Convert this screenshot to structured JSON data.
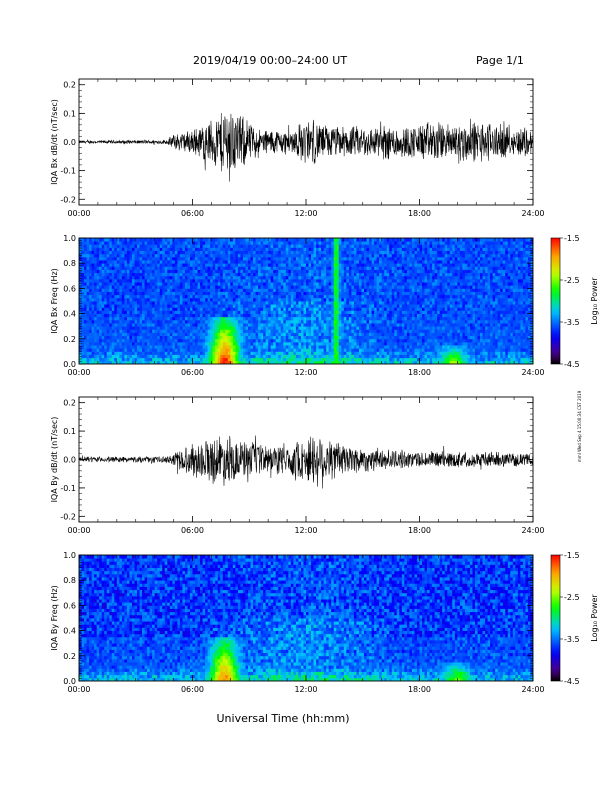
{
  "header": {
    "date_range": "2019/04/19   00:00–24:00 UT",
    "page": "Page 1/1"
  },
  "side_note": "mml Wed Sep 4 15:00:34 CST 2019",
  "xlabel": "Universal Time (hh:mm)",
  "colormap": "rainbow",
  "chart_data": [
    {
      "type": "line",
      "ylabel": "IQA Bx dB/dt (nT/sec)",
      "xlim": [
        0,
        24
      ],
      "ylim": [
        -0.22,
        0.22
      ],
      "x_ticks": [
        "00:00",
        "06:00",
        "12:00",
        "18:00",
        "24:00"
      ],
      "y_ticks": [
        -0.2,
        -0.1,
        0.0,
        0.1,
        0.2
      ],
      "y_tick_labels": [
        "-0.2",
        "-0.1",
        "0.0",
        "0.1",
        "0.2"
      ],
      "envelope": {
        "hours": [
          0,
          4.7,
          4.9,
          5.6,
          6.2,
          6.8,
          7.2,
          7.6,
          7.9,
          8.3,
          8.8,
          9.5,
          10.5,
          11.2,
          11.8,
          12.3,
          12.8,
          13.5,
          14.5,
          15.5,
          16.5,
          17.5,
          18.5,
          19.5,
          20.5,
          21.5,
          22.5,
          23.2,
          23.6,
          24
        ],
        "amplitude": [
          0.006,
          0.008,
          0.03,
          0.04,
          0.055,
          0.08,
          0.1,
          0.13,
          0.16,
          0.12,
          0.09,
          0.05,
          0.05,
          0.045,
          0.08,
          0.09,
          0.07,
          0.06,
          0.06,
          0.06,
          0.07,
          0.06,
          0.08,
          0.07,
          0.08,
          0.08,
          0.06,
          0.05,
          0.07,
          0.035
        ]
      },
      "peak_max": 0.17,
      "peak_min": -0.15
    },
    {
      "type": "heatmap",
      "ylabel": "IQA Bx Freq (Hz)",
      "colorbar_label": "Log₁₀ Power",
      "xlim": [
        0,
        24
      ],
      "ylim": [
        0,
        1.0
      ],
      "clim": [
        -4.5,
        -1.5
      ],
      "x_ticks": [
        "00:00",
        "06:00",
        "12:00",
        "18:00",
        "24:00"
      ],
      "y_tick_labels": [
        "0.0",
        "0.2",
        "0.4",
        "0.6",
        "0.8",
        "1.0"
      ],
      "colorbar_ticks": [
        "-1.5",
        "-2.5",
        "-3.5",
        "-4.5"
      ],
      "bursts": [
        {
          "hour": 7.7,
          "freq_top": 0.38,
          "peak": -1.5
        },
        {
          "hour": 13.6,
          "freq_top": 1.0,
          "peak": -2.6
        },
        {
          "hour": 19.8,
          "freq_top": 0.15,
          "peak": -2.4
        }
      ]
    },
    {
      "type": "line",
      "ylabel": "IQA By dB/dt (nT/sec)",
      "xlim": [
        0,
        24
      ],
      "ylim": [
        -0.22,
        0.22
      ],
      "x_ticks": [
        "00:00",
        "06:00",
        "12:00",
        "18:00",
        "24:00"
      ],
      "y_ticks": [
        -0.2,
        -0.1,
        0.0,
        0.1,
        0.2
      ],
      "y_tick_labels": [
        "-0.2",
        "-0.1",
        "0.0",
        "0.1",
        "0.2"
      ],
      "envelope": {
        "hours": [
          0,
          4.7,
          4.9,
          5.6,
          6.3,
          7.0,
          7.6,
          8.2,
          9.0,
          10.0,
          10.8,
          11.5,
          12.3,
          12.8,
          13.4,
          14.0,
          15.0,
          16.0,
          17.0,
          18.0,
          19.0,
          20.0,
          21.0,
          22.0,
          23.0,
          24
        ],
        "amplitude": [
          0.01,
          0.012,
          0.03,
          0.05,
          0.07,
          0.09,
          0.1,
          0.08,
          0.07,
          0.055,
          0.06,
          0.07,
          0.1,
          0.11,
          0.08,
          0.065,
          0.05,
          0.04,
          0.035,
          0.03,
          0.035,
          0.03,
          0.03,
          0.03,
          0.025,
          0.02
        ]
      },
      "peak_max": 0.12,
      "peak_min": -0.11
    },
    {
      "type": "heatmap",
      "ylabel": "IQA By Freq (Hz)",
      "colorbar_label": "Log₁₀ Power",
      "xlim": [
        0,
        24
      ],
      "ylim": [
        0,
        1.0
      ],
      "clim": [
        -4.5,
        -1.5
      ],
      "x_ticks": [
        "00:00",
        "06:00",
        "12:00",
        "18:00",
        "24:00"
      ],
      "y_tick_labels": [
        "0.0",
        "0.2",
        "0.4",
        "0.6",
        "0.8",
        "1.0"
      ],
      "colorbar_ticks": [
        "-1.5",
        "-2.5",
        "-3.5",
        "-4.5"
      ],
      "bursts": [
        {
          "hour": 7.7,
          "freq_top": 0.35,
          "peak": -1.8
        },
        {
          "hour": 20.0,
          "freq_top": 0.15,
          "peak": -2.5
        }
      ]
    }
  ]
}
